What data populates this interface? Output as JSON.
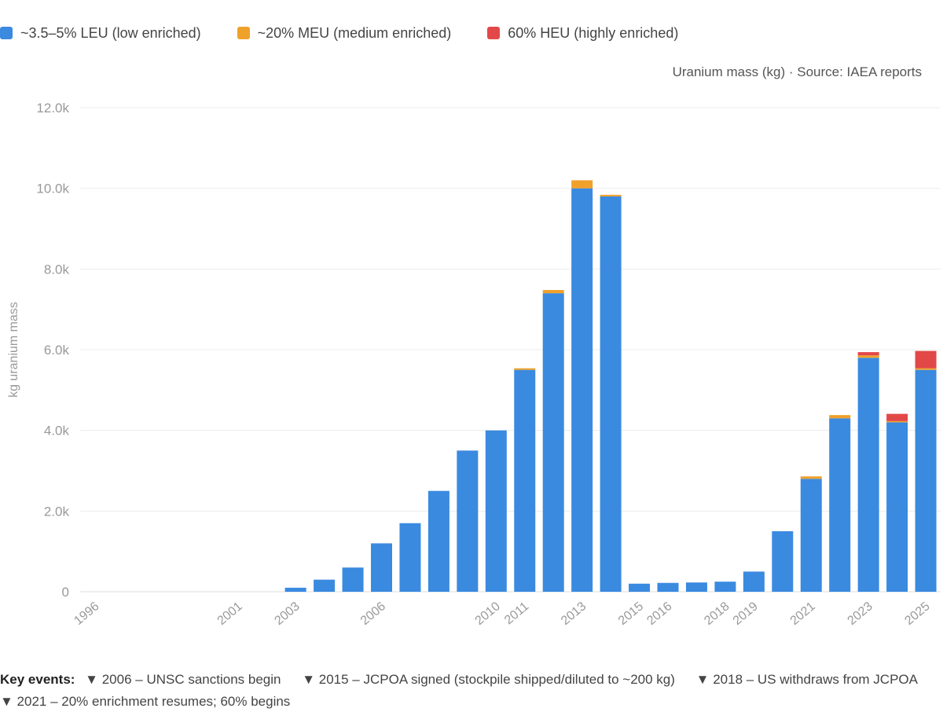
{
  "legend": [
    {
      "label": "~3.5–5% LEU (low enriched)",
      "color": "#3a8ae0"
    },
    {
      "label": "~20% MEU (medium enriched)",
      "color": "#f0a12a"
    },
    {
      "label": "60% HEU (highly enriched)",
      "color": "#e24848"
    }
  ],
  "subtitle": "Uranium mass (kg) · Source: IAEA reports",
  "footer": {
    "label": "Key events:",
    "events": [
      "▼ 2006 – UNSC sanctions begin",
      "▼ 2015 – JCPOA signed (stockpile shipped/diluted to ~200 kg)",
      "▼ 2018 – US withdraws from JCPOA",
      "▼ 2021 – 20% enrichment resumes; 60% begins"
    ]
  },
  "chart_data": {
    "type": "bar",
    "stacked": true,
    "title": "",
    "xlabel": "",
    "ylabel": "kg uranium mass",
    "ylim": [
      0,
      12000
    ],
    "yticks": [
      0,
      2000,
      4000,
      6000,
      8000,
      10000,
      12000
    ],
    "ytick_labels": [
      "0",
      "2.0k",
      "4.0k",
      "6.0k",
      "8.0k",
      "10.0k",
      "12.0k"
    ],
    "categories": [
      "1996",
      "1997",
      "1998",
      "1999",
      "2000",
      "2001",
      "2002",
      "2003",
      "2004",
      "2005",
      "2006",
      "2007",
      "2008",
      "2009",
      "2010",
      "2011",
      "2012",
      "2013",
      "2014",
      "2015",
      "2016",
      "2017",
      "2018",
      "2019",
      "2020",
      "2021",
      "2022",
      "2023",
      "2024",
      "2025"
    ],
    "tick_labels": [
      "1996",
      "",
      "",
      "",
      "",
      "2001",
      "",
      "2003",
      "",
      "",
      "2006",
      "",
      "",
      "",
      "2010",
      "2011",
      "",
      "2013",
      "",
      "2015",
      "2016",
      "",
      "2018",
      "2019",
      "",
      "2021",
      "",
      "2023",
      "",
      "2025"
    ],
    "series": [
      {
        "name": "~3.5–5% LEU (low enriched)",
        "color": "#3a8ae0",
        "values": [
          0,
          0,
          0,
          0,
          0,
          0,
          0,
          100,
          300,
          600,
          1200,
          1700,
          2500,
          3500,
          4000,
          5500,
          7400,
          10000,
          9800,
          200,
          220,
          230,
          250,
          500,
          1500,
          2800,
          4300,
          5800,
          4200,
          5500
        ]
      },
      {
        "name": "~20% MEU (medium enriched)",
        "color": "#f0a12a",
        "values": [
          0,
          0,
          0,
          0,
          0,
          0,
          0,
          0,
          0,
          0,
          0,
          0,
          0,
          0,
          0,
          40,
          80,
          200,
          40,
          0,
          0,
          0,
          0,
          0,
          0,
          60,
          80,
          60,
          30,
          40
        ]
      },
      {
        "name": "60% HEU (highly enriched)",
        "color": "#e24848",
        "values": [
          0,
          0,
          0,
          0,
          0,
          0,
          0,
          0,
          0,
          0,
          0,
          0,
          0,
          0,
          0,
          0,
          0,
          0,
          0,
          0,
          0,
          0,
          0,
          0,
          0,
          0,
          0,
          80,
          180,
          430
        ]
      }
    ]
  }
}
